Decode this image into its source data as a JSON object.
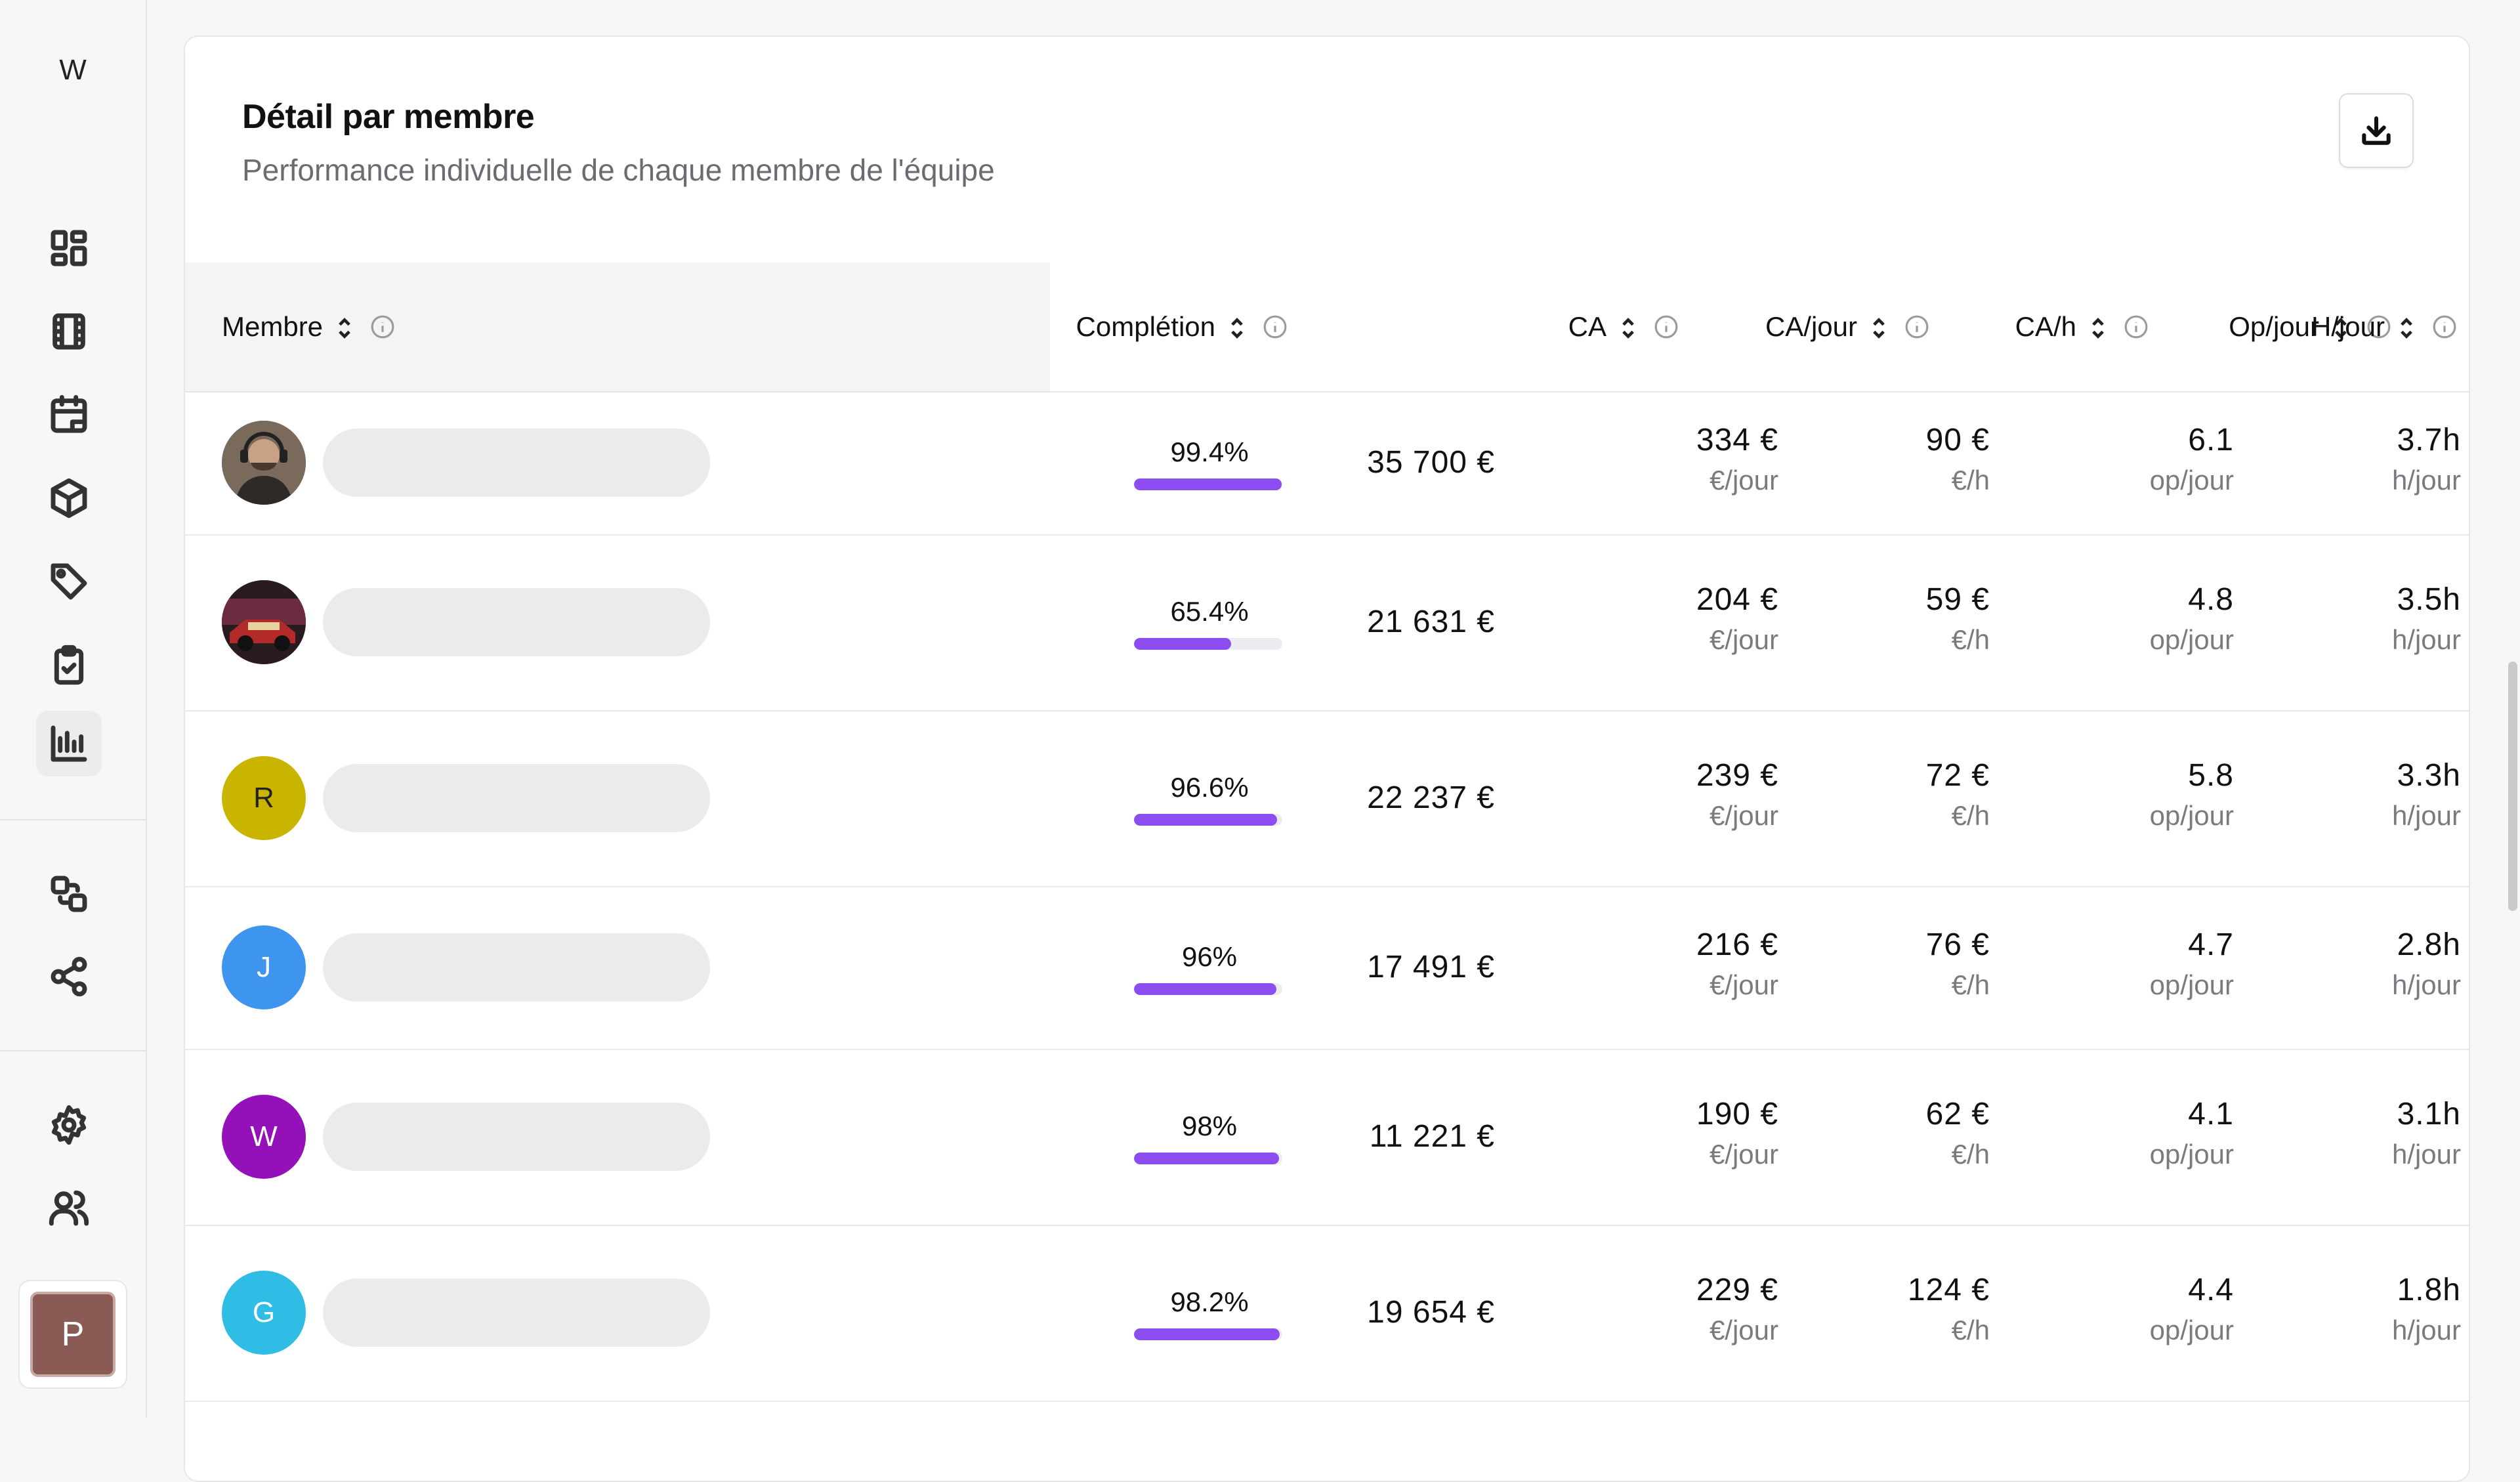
{
  "sidebar": {
    "logo": "W",
    "nav": [
      {
        "icon": "dashboard-icon"
      },
      {
        "icon": "film-icon"
      },
      {
        "icon": "calendar-icon"
      },
      {
        "icon": "box-icon"
      },
      {
        "icon": "tag-icon"
      },
      {
        "icon": "clipboard-check-icon"
      },
      {
        "icon": "bar-chart-icon",
        "active": true
      },
      {
        "icon": "transfer-icon"
      },
      {
        "icon": "share-icon"
      },
      {
        "icon": "settings-icon"
      },
      {
        "icon": "users-icon"
      }
    ],
    "user_initial": "P"
  },
  "card": {
    "title": "Détail par membre",
    "subtitle": "Performance individuelle de chaque membre de l'équipe",
    "download_icon": "download-icon"
  },
  "table": {
    "columns": [
      "Membre",
      "Complétion",
      "CA",
      "CA/jour",
      "CA/h",
      "Op/jour",
      "H/jour"
    ],
    "rows": [
      {
        "avatar": "photo-1",
        "initial": "",
        "color": "#5b4a3f",
        "completion": "99.4%",
        "completion_value": 0.994,
        "ca": "35 700 €",
        "ca_jour": "334 €",
        "ca_jour_unit": "€/jour",
        "ca_h": "90 €",
        "ca_h_unit": "€/h",
        "op_jour": "6.1",
        "op_jour_unit": "op/jour",
        "h_jour": "3.7h",
        "h_jour_unit": "h/jour"
      },
      {
        "avatar": "photo-2",
        "initial": "",
        "color": "#5a2b2b",
        "completion": "65.4%",
        "completion_value": 0.654,
        "ca": "21 631 €",
        "ca_jour": "204 €",
        "ca_jour_unit": "€/jour",
        "ca_h": "59 €",
        "ca_h_unit": "€/h",
        "op_jour": "4.8",
        "op_jour_unit": "op/jour",
        "h_jour": "3.5h",
        "h_jour_unit": "h/jour"
      },
      {
        "avatar": "initial",
        "initial": "R",
        "color": "#c9b400",
        "text_color": "#222",
        "completion": "96.6%",
        "completion_value": 0.966,
        "ca": "22 237 €",
        "ca_jour": "239 €",
        "ca_jour_unit": "€/jour",
        "ca_h": "72 €",
        "ca_h_unit": "€/h",
        "op_jour": "5.8",
        "op_jour_unit": "op/jour",
        "h_jour": "3.3h",
        "h_jour_unit": "h/jour"
      },
      {
        "avatar": "initial",
        "initial": "J",
        "color": "#3d95f0",
        "text_color": "#fff",
        "completion": "96%",
        "completion_value": 0.96,
        "ca": "17 491 €",
        "ca_jour": "216 €",
        "ca_jour_unit": "€/jour",
        "ca_h": "76 €",
        "ca_h_unit": "€/h",
        "op_jour": "4.7",
        "op_jour_unit": "op/jour",
        "h_jour": "2.8h",
        "h_jour_unit": "h/jour"
      },
      {
        "avatar": "initial",
        "initial": "W",
        "color": "#9410b8",
        "text_color": "#fff",
        "completion": "98%",
        "completion_value": 0.98,
        "ca": "11 221 €",
        "ca_jour": "190 €",
        "ca_jour_unit": "€/jour",
        "ca_h": "62 €",
        "ca_h_unit": "€/h",
        "op_jour": "4.1",
        "op_jour_unit": "op/jour",
        "h_jour": "3.1h",
        "h_jour_unit": "h/jour"
      },
      {
        "avatar": "initial",
        "initial": "G",
        "color": "#2fbde6",
        "text_color": "#fff",
        "completion": "98.2%",
        "completion_value": 0.982,
        "ca": "19 654 €",
        "ca_jour": "229 €",
        "ca_jour_unit": "€/jour",
        "ca_h": "124 €",
        "ca_h_unit": "€/h",
        "op_jour": "4.4",
        "op_jour_unit": "op/jour",
        "h_jour": "1.8h",
        "h_jour_unit": "h/jour"
      }
    ]
  }
}
